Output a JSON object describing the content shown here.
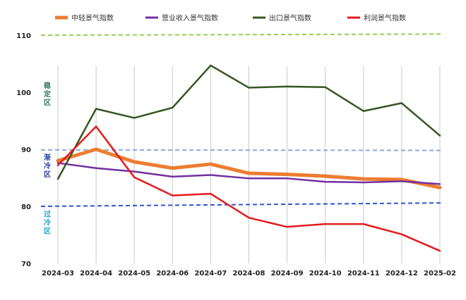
{
  "chart_data": {
    "type": "line",
    "categories": [
      "2024-03",
      "2024-04",
      "2024-05",
      "2024-06",
      "2024-07",
      "2024-08",
      "2024-09",
      "2024-10",
      "2024-11",
      "2024-12",
      "2025-02"
    ],
    "ylim": [
      70,
      110
    ],
    "yticks": [
      "70",
      "80",
      "90",
      "100",
      "110"
    ],
    "series": [
      {
        "name": "中轻景气指数",
        "color": "#ED7D31",
        "width": 5,
        "values": [
          88.0,
          90.0,
          87.8,
          86.7,
          87.4,
          85.8,
          85.6,
          85.3,
          84.8,
          84.7,
          83.3
        ]
      },
      {
        "name": "营业收入景气指数",
        "color": "#7030A0",
        "width": 2.5,
        "values": [
          87.6,
          86.7,
          86.1,
          85.2,
          85.5,
          84.9,
          84.9,
          84.3,
          84.2,
          84.4,
          83.9
        ]
      },
      {
        "name": "出口景气指数",
        "color": "#375623",
        "width": 2.5,
        "values": [
          84.8,
          97.1,
          95.5,
          97.3,
          104.7,
          100.8,
          101.0,
          100.9,
          96.7,
          98.1,
          92.4
        ]
      },
      {
        "name": "利润景气指数",
        "color": "#E31A1C",
        "width": 2.5,
        "values": [
          87.2,
          94.0,
          85.1,
          81.9,
          82.2,
          78.0,
          76.4,
          76.9,
          76.9,
          75.1,
          72.2
        ]
      }
    ],
    "reference_lines": [
      {
        "name": "upper",
        "color": "#92D050",
        "values_start": 110.0,
        "values_end": 110.2
      },
      {
        "name": "mid",
        "color": "#8EA9DB",
        "values_start": 89.9,
        "values_end": 89.8
      },
      {
        "name": "lower",
        "color": "#2F55D4",
        "values_start": 80.0,
        "values_end": 80.6
      }
    ],
    "zone_labels": [
      {
        "text": "稳定区",
        "color": "#2E7D5B",
        "value": 99.5
      },
      {
        "text": "渐冷区",
        "color": "#1F3E9F",
        "value": 86.9
      },
      {
        "text": "过冷区",
        "color": "#1FA3D0",
        "value": 77.0
      }
    ],
    "legend_position": "top",
    "grid": "vertical"
  }
}
